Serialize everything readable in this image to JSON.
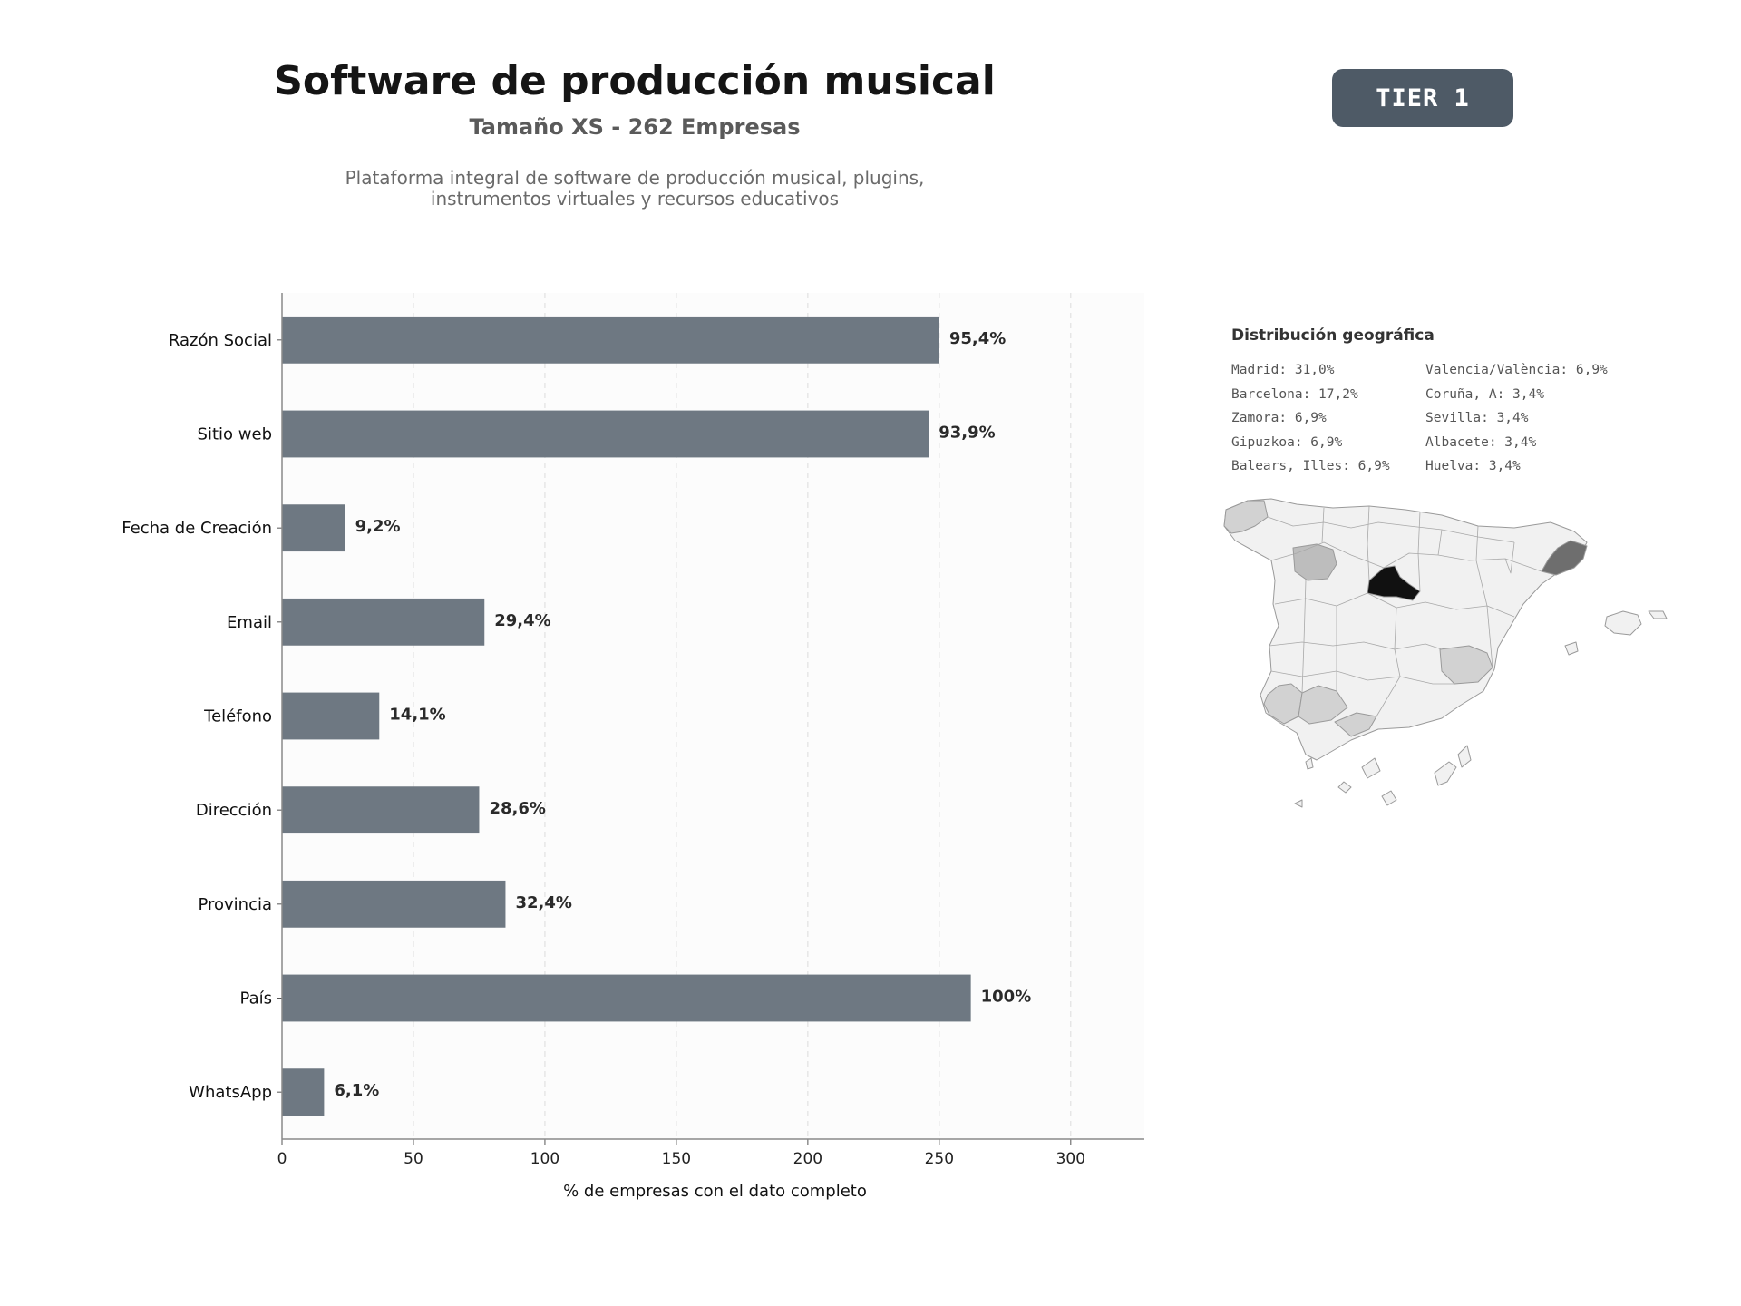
{
  "header": {
    "title": "Software de producción musical",
    "subtitle": "Tamaño XS - 262 Empresas",
    "description_line1": "Plataforma integral de software de producción musical, plugins,",
    "description_line2": "instrumentos virtuales y recursos educativos",
    "tier_badge": "TIER 1"
  },
  "chart_data": {
    "type": "bar",
    "orientation": "horizontal",
    "categories": [
      "Razón Social",
      "Sitio web",
      "Fecha de Creación",
      "Email",
      "Teléfono",
      "Dirección",
      "Provincia",
      "País",
      "WhatsApp"
    ],
    "values": [
      250,
      246,
      24,
      77,
      37,
      75,
      85,
      262,
      16
    ],
    "data_labels": [
      "95,4%",
      "93,9%",
      "9,2%",
      "29,4%",
      "14,1%",
      "28,6%",
      "32,4%",
      "100%",
      "6,1%"
    ],
    "xlabel": "% de empresas con el dato completo",
    "ylabel": "",
    "xlim": [
      0,
      328
    ],
    "xticks": [
      0,
      50,
      100,
      150,
      200,
      250,
      300
    ],
    "grid": "vertical dashed",
    "bar_color": "#6e7882"
  },
  "geo": {
    "title": "Distribución geográfica",
    "entries": [
      "Madrid: 31,0%",
      "Valencia/València: 6,9%",
      "Barcelona: 17,2%",
      "Coruña, A: 3,4%",
      "Zamora: 6,9%",
      "Sevilla: 3,4%",
      "Gipuzkoa: 6,9%",
      "Albacete: 3,4%",
      "Balears, Illes: 6,9%",
      "Huelva: 3,4%"
    ],
    "map_colors": {
      "base": "#f1f1f1",
      "madrid": "#111111",
      "barcelona": "#6e6e6e",
      "mid": "#bdbdbd",
      "light": "#d2d2d2"
    }
  }
}
